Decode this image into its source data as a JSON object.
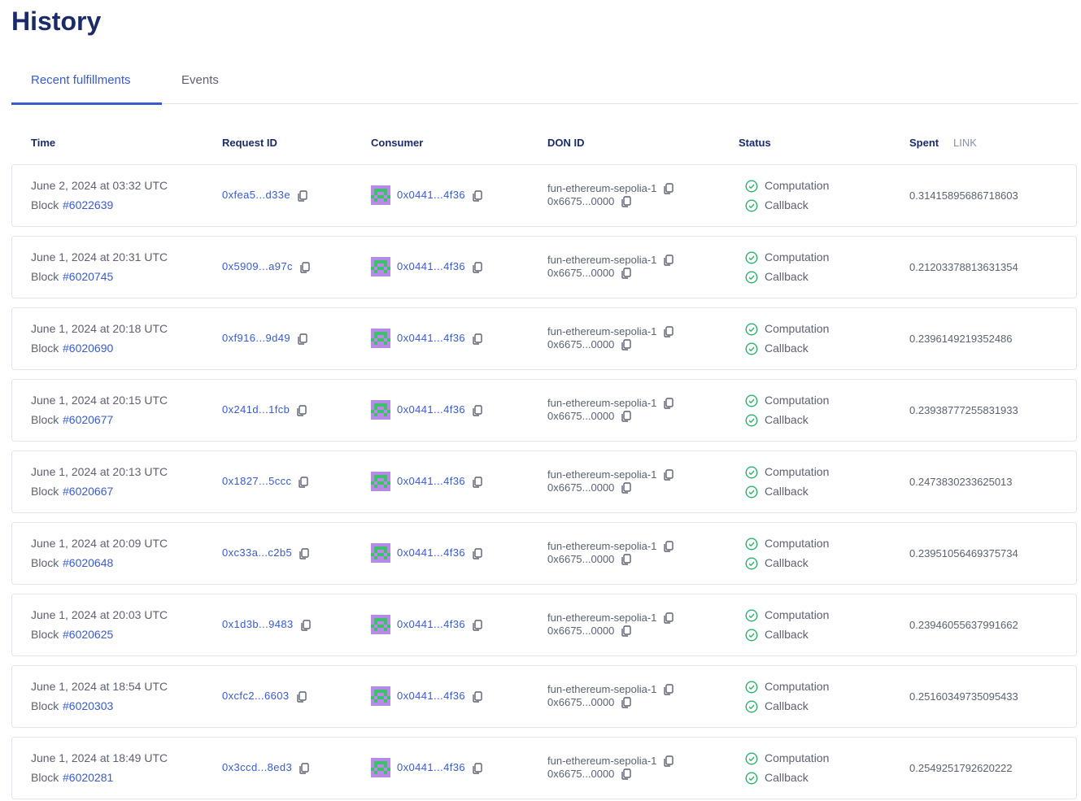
{
  "header": {
    "title": "History"
  },
  "tabs": [
    "Recent fulfillments",
    "Events"
  ],
  "table": {
    "columns": [
      "Time",
      "Request ID",
      "Consumer",
      "DON ID",
      "Status",
      "Spent"
    ],
    "spent_unit": "LINK",
    "rows": [
      {
        "time": "June 2, 2024 at 03:32 UTC",
        "block_label": "Block",
        "block": "#6022639",
        "request_id": "0xfea5...d33e",
        "consumer": "0x0441...4f36",
        "don_name": "fun-ethereum-sepolia-1",
        "don_address": "0x6675...0000",
        "computation": "Computation",
        "callback": "Callback",
        "spent": "0.31415895686718603"
      },
      {
        "time": "June 1, 2024 at 20:31 UTC",
        "block_label": "Block",
        "block": "#6020745",
        "request_id": "0x5909...a97c",
        "consumer": "0x0441...4f36",
        "don_name": "fun-ethereum-sepolia-1",
        "don_address": "0x6675...0000",
        "computation": "Computation",
        "callback": "Callback",
        "spent": "0.21203378813631354"
      },
      {
        "time": "June 1, 2024 at 20:18 UTC",
        "block_label": "Block",
        "block": "#6020690",
        "request_id": "0xf916...9d49",
        "consumer": "0x0441...4f36",
        "don_name": "fun-ethereum-sepolia-1",
        "don_address": "0x6675...0000",
        "computation": "Computation",
        "callback": "Callback",
        "spent": "0.2396149219352486"
      },
      {
        "time": "June 1, 2024 at 20:15 UTC",
        "block_label": "Block",
        "block": "#6020677",
        "request_id": "0x241d...1fcb",
        "consumer": "0x0441...4f36",
        "don_name": "fun-ethereum-sepolia-1",
        "don_address": "0x6675...0000",
        "computation": "Computation",
        "callback": "Callback",
        "spent": "0.23938777255831933"
      },
      {
        "time": "June 1, 2024 at 20:13 UTC",
        "block_label": "Block",
        "block": "#6020667",
        "request_id": "0x1827...5ccc",
        "consumer": "0x0441...4f36",
        "don_name": "fun-ethereum-sepolia-1",
        "don_address": "0x6675...0000",
        "computation": "Computation",
        "callback": "Callback",
        "spent": "0.2473830233625013"
      },
      {
        "time": "June 1, 2024 at 20:09 UTC",
        "block_label": "Block",
        "block": "#6020648",
        "request_id": "0xc33a...c2b5",
        "consumer": "0x0441...4f36",
        "don_name": "fun-ethereum-sepolia-1",
        "don_address": "0x6675...0000",
        "computation": "Computation",
        "callback": "Callback",
        "spent": "0.23951056469375734"
      },
      {
        "time": "June 1, 2024 at 20:03 UTC",
        "block_label": "Block",
        "block": "#6020625",
        "request_id": "0x1d3b...9483",
        "consumer": "0x0441...4f36",
        "don_name": "fun-ethereum-sepolia-1",
        "don_address": "0x6675...0000",
        "computation": "Computation",
        "callback": "Callback",
        "spent": "0.23946055637991662"
      },
      {
        "time": "June 1, 2024 at 18:54 UTC",
        "block_label": "Block",
        "block": "#6020303",
        "request_id": "0xcfc2...6603",
        "consumer": "0x0441...4f36",
        "don_name": "fun-ethereum-sepolia-1",
        "don_address": "0x6675...0000",
        "computation": "Computation",
        "callback": "Callback",
        "spent": "0.25160349735095433"
      },
      {
        "time": "June 1, 2024 at 18:49 UTC",
        "block_label": "Block",
        "block": "#6020281",
        "request_id": "0x3ccd...8ed3",
        "consumer": "0x0441...4f36",
        "don_name": "fun-ethereum-sepolia-1",
        "don_address": "0x6675...0000",
        "computation": "Computation",
        "callback": "Callback",
        "spent": "0.2549251792620222"
      }
    ]
  }
}
